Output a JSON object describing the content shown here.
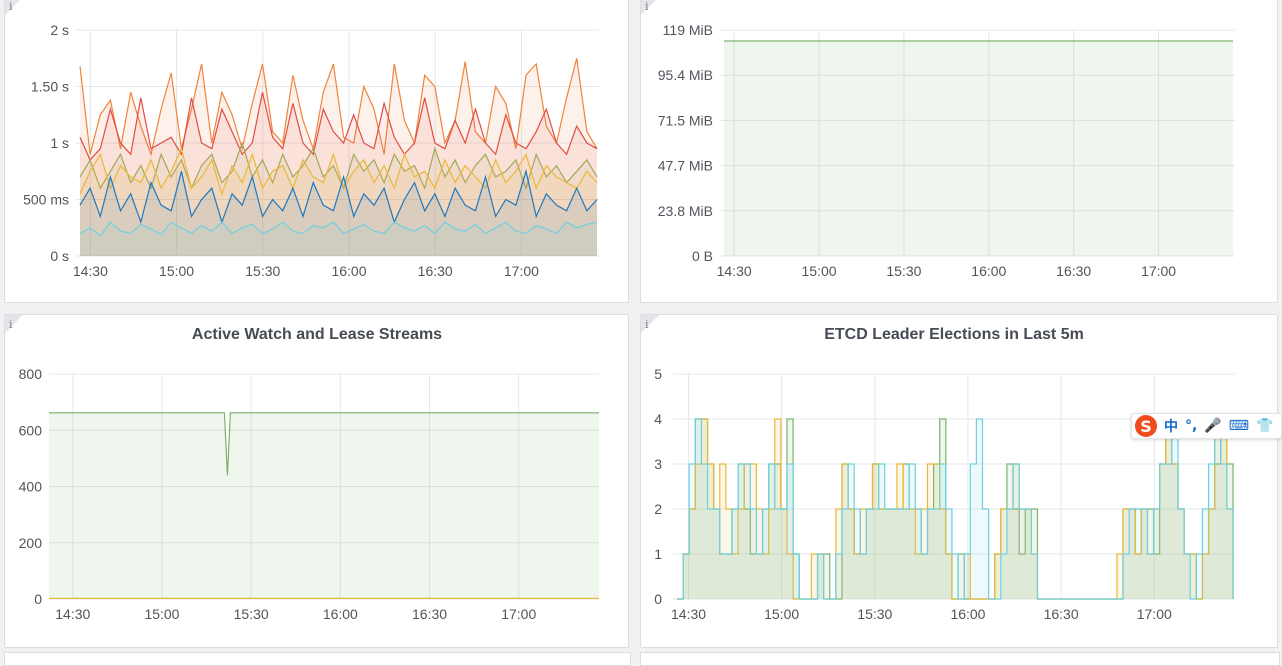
{
  "colors": {
    "green": "#7eb26d",
    "yellow": "#eab839",
    "cyan": "#6ed0e0",
    "orange": "#ef843c",
    "red": "#e24d42",
    "blue": "#1f78c1",
    "teal": "#70dbc9",
    "olive": "#a4a75a",
    "grid": "#e6e7ea"
  },
  "chart_data": [
    {
      "type": "line",
      "title": "",
      "yticks": [
        "0 s",
        "500 ms",
        "1 s",
        "1.50 s",
        "2 s"
      ],
      "ylim": [
        0,
        2
      ],
      "y_unit": "s",
      "xticks": [
        "14:30",
        "15:00",
        "15:30",
        "16:00",
        "16:30",
        "17:00"
      ],
      "xlim": [
        "14:25",
        "17:27"
      ],
      "area_fill": true,
      "series": [
        {
          "color": "orange",
          "values": [
            1.68,
            0.9,
            1.25,
            1.38,
            0.95,
            1.45,
            1.15,
            0.9,
            1.3,
            1.62,
            0.95,
            1.3,
            1.7,
            1.0,
            1.45,
            1.25,
            0.95,
            1.35,
            1.7,
            1.1,
            1.0,
            1.6,
            1.2,
            0.95,
            1.45,
            1.7,
            1.05,
            1.0,
            1.5,
            1.3,
            0.9,
            1.7,
            1.2,
            1.0,
            1.6,
            1.5,
            1.0,
            1.2,
            1.72,
            1.1,
            1.0,
            1.5,
            1.35,
            0.95,
            1.6,
            1.7,
            1.15,
            1.0,
            1.4,
            1.75,
            1.1,
            0.95
          ]
        },
        {
          "color": "red",
          "values": [
            1.05,
            0.85,
            0.95,
            1.3,
            1.0,
            0.9,
            1.4,
            0.95,
            1.0,
            1.05,
            0.9,
            1.4,
            1.0,
            0.95,
            1.3,
            1.1,
            0.9,
            1.0,
            1.45,
            1.05,
            0.95,
            1.35,
            1.0,
            0.9,
            1.3,
            1.1,
            1.0,
            1.25,
            1.0,
            0.95,
            1.35,
            1.05,
            0.9,
            1.0,
            1.4,
            1.0,
            0.95,
            1.2,
            1.0,
            1.3,
            1.0,
            0.9,
            1.25,
            1.0,
            0.95,
            1.1,
            1.3,
            1.0,
            0.9,
            1.15,
            1.0,
            0.95
          ]
        },
        {
          "color": "olive",
          "values": [
            0.7,
            0.85,
            0.6,
            0.75,
            0.9,
            0.65,
            0.8,
            0.6,
            0.9,
            0.7,
            0.85,
            0.6,
            0.8,
            0.9,
            0.65,
            0.75,
            1.0,
            0.7,
            0.85,
            0.65,
            0.9,
            0.7,
            0.8,
            0.95,
            0.7,
            0.8,
            0.6,
            0.9,
            0.75,
            0.85,
            0.65,
            0.9,
            0.75,
            0.8,
            0.6,
            0.95,
            0.7,
            0.85,
            0.65,
            0.8,
            0.9,
            0.7,
            0.75,
            0.85,
            0.6,
            0.9,
            0.7,
            0.8,
            0.65,
            0.75,
            0.85,
            0.7
          ]
        },
        {
          "color": "yellow",
          "values": [
            0.55,
            0.75,
            0.9,
            0.6,
            0.8,
            0.7,
            0.65,
            0.85,
            0.6,
            0.75,
            0.95,
            0.6,
            0.7,
            0.85,
            0.55,
            0.8,
            0.65,
            0.9,
            0.6,
            0.75,
            0.8,
            0.6,
            0.85,
            0.7,
            0.65,
            0.9,
            0.6,
            0.75,
            0.85,
            0.65,
            0.8,
            0.6,
            0.9,
            0.7,
            0.75,
            0.6,
            0.85,
            0.65,
            0.8,
            0.7,
            0.6,
            0.85,
            0.65,
            0.75,
            0.9,
            0.6,
            0.8,
            0.7,
            0.65,
            0.6,
            0.75,
            0.65
          ]
        },
        {
          "color": "blue",
          "values": [
            0.45,
            0.6,
            0.35,
            0.7,
            0.4,
            0.55,
            0.3,
            0.65,
            0.45,
            0.4,
            0.75,
            0.35,
            0.5,
            0.6,
            0.3,
            0.55,
            0.45,
            0.7,
            0.35,
            0.5,
            0.4,
            0.6,
            0.35,
            0.65,
            0.45,
            0.4,
            0.7,
            0.35,
            0.55,
            0.45,
            0.6,
            0.3,
            0.5,
            0.65,
            0.4,
            0.55,
            0.35,
            0.6,
            0.45,
            0.4,
            0.7,
            0.35,
            0.5,
            0.45,
            0.75,
            0.35,
            0.55,
            0.45,
            0.4,
            0.6,
            0.4,
            0.5
          ]
        },
        {
          "color": "cyan",
          "values": [
            0.2,
            0.25,
            0.18,
            0.3,
            0.22,
            0.2,
            0.28,
            0.24,
            0.19,
            0.3,
            0.25,
            0.2,
            0.27,
            0.22,
            0.3,
            0.2,
            0.25,
            0.28,
            0.2,
            0.24,
            0.3,
            0.22,
            0.2,
            0.27,
            0.25,
            0.3,
            0.2,
            0.24,
            0.28,
            0.22,
            0.2,
            0.3,
            0.25,
            0.22,
            0.27,
            0.2,
            0.3,
            0.24,
            0.22,
            0.28,
            0.2,
            0.25,
            0.3,
            0.22,
            0.2,
            0.27,
            0.24,
            0.2,
            0.3,
            0.25,
            0.28,
            0.3
          ]
        }
      ]
    },
    {
      "type": "area",
      "title": "",
      "yticks": [
        "0 B",
        "23.8 MiB",
        "47.7 MiB",
        "71.5 MiB",
        "95.4 MiB",
        "119 MiB"
      ],
      "ylim": [
        0,
        119.2
      ],
      "y_unit": "MiB",
      "xticks": [
        "14:30",
        "15:00",
        "15:30",
        "16:00",
        "16:30",
        "17:00"
      ],
      "xlim": [
        "14:25",
        "17:27"
      ],
      "series": [
        {
          "color": "green",
          "values": [
            113.4,
            113.4
          ]
        }
      ]
    },
    {
      "type": "area",
      "title": "Active Watch and Lease Streams",
      "yticks": [
        "0",
        "200",
        "400",
        "600",
        "800"
      ],
      "ylim": [
        0,
        800
      ],
      "xticks": [
        "14:30",
        "15:00",
        "15:30",
        "16:00",
        "16:30",
        "17:00"
      ],
      "xlim": [
        "14:22",
        "17:27"
      ],
      "series": [
        {
          "color": "green",
          "x": [
            "14:22",
            "15:21",
            "15:22",
            "15:23",
            "17:27"
          ],
          "values": [
            662,
            662,
            440,
            662,
            662
          ]
        },
        {
          "color": "yellow",
          "x": [
            "14:22",
            "17:27"
          ],
          "values": [
            2,
            2
          ]
        }
      ]
    },
    {
      "type": "area",
      "title": "ETCD Leader Elections in Last 5m",
      "yticks": [
        "0",
        "1",
        "2",
        "3",
        "4",
        "5"
      ],
      "ylim": [
        0,
        5
      ],
      "xticks": [
        "14:30",
        "15:00",
        "15:30",
        "16:00",
        "16:30",
        "17:00"
      ],
      "xlim": [
        "14:25",
        "17:26"
      ],
      "step": true,
      "series": [
        {
          "color": "green",
          "values": [
            0,
            1,
            2,
            4,
            4,
            3,
            2,
            1,
            1,
            2,
            3,
            2,
            1,
            1,
            2,
            3,
            3,
            2,
            4,
            1,
            0,
            0,
            0,
            1,
            1,
            0,
            0,
            3,
            2,
            1,
            1,
            2,
            3,
            2,
            2,
            2,
            2,
            3,
            2,
            2,
            1,
            2,
            3,
            4,
            1,
            0,
            1,
            0,
            0,
            0,
            0,
            0,
            1,
            2,
            3,
            2,
            1,
            2,
            2,
            0,
            0,
            0,
            0,
            0,
            0,
            0,
            0,
            0,
            0,
            0,
            0,
            0,
            0,
            2,
            2,
            1,
            2,
            2,
            1,
            3,
            4,
            3,
            2,
            1,
            1,
            0,
            1,
            2,
            3,
            4,
            3,
            0
          ]
        },
        {
          "color": "yellow",
          "values": [
            0,
            1,
            2,
            3,
            4,
            3,
            2,
            3,
            2,
            1,
            2,
            3,
            3,
            2,
            1,
            2,
            4,
            2,
            1,
            0,
            0,
            0,
            1,
            1,
            0,
            0,
            2,
            3,
            2,
            1,
            2,
            2,
            3,
            2,
            2,
            2,
            3,
            2,
            2,
            1,
            2,
            3,
            3,
            2,
            1,
            0,
            0,
            1,
            0,
            0,
            0,
            0,
            1,
            2,
            2,
            3,
            2,
            2,
            1,
            0,
            0,
            0,
            0,
            0,
            0,
            0,
            0,
            0,
            0,
            0,
            0,
            0,
            1,
            2,
            2,
            1,
            2,
            1,
            2,
            3,
            4,
            3,
            2,
            1,
            1,
            0,
            1,
            2,
            4,
            4,
            2,
            0
          ]
        },
        {
          "color": "cyan",
          "values": [
            0,
            1,
            3,
            4,
            3,
            2,
            2,
            1,
            1,
            2,
            3,
            3,
            2,
            1,
            2,
            3,
            2,
            2,
            3,
            1,
            0,
            0,
            0,
            1,
            0,
            0,
            1,
            2,
            3,
            2,
            1,
            2,
            2,
            3,
            2,
            2,
            2,
            2,
            3,
            2,
            1,
            2,
            2,
            3,
            2,
            1,
            0,
            1,
            3,
            4,
            2,
            0,
            0,
            1,
            2,
            3,
            2,
            2,
            1,
            0,
            0,
            0,
            0,
            0,
            0,
            0,
            0,
            0,
            0,
            0,
            0,
            0,
            0,
            1,
            2,
            2,
            2,
            1,
            2,
            3,
            3,
            4,
            2,
            1,
            0,
            1,
            2,
            3,
            4,
            3,
            2,
            0
          ]
        }
      ]
    }
  ]
}
